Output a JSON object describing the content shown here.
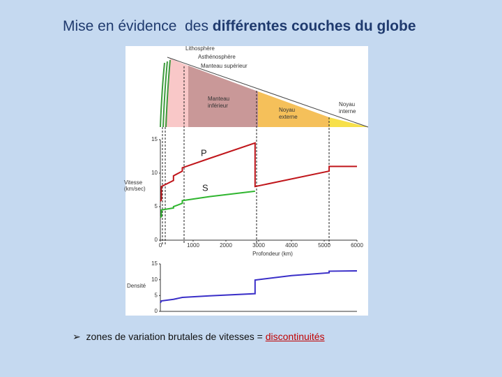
{
  "slide": {
    "title_plain": "Mise en évidence  des ",
    "title_bold": "différentes couches du globe",
    "bullet_text": "zones de variation brutales de vitesses = ",
    "bullet_highlight": "discontinuités"
  },
  "cross_section": {
    "labels": [
      [
        "Lithosphère"
      ],
      [
        "Asthénosphère"
      ],
      [
        "Manteau supérieur"
      ],
      [
        "Manteau",
        "inférieur"
      ],
      [
        "Noyau",
        "externe"
      ],
      [
        "Noyau",
        "interne"
      ]
    ]
  },
  "chart_data": [
    {
      "type": "line",
      "ylabel": [
        "Vitesse",
        "(km/sec)"
      ],
      "xlabel": "Profondeur (km)",
      "xlim": [
        0,
        6000
      ],
      "ylim": [
        0,
        15
      ],
      "xticks": [
        0,
        1000,
        2000,
        3000,
        4000,
        5000,
        6000
      ],
      "yticks": [
        0,
        5,
        10,
        15
      ],
      "series": [
        {
          "name": "P",
          "color": "#c0161b",
          "x": [
            0,
            30,
            30,
            400,
            400,
            670,
            670,
            1500,
            2890,
            2890,
            5150,
            5150,
            6000
          ],
          "values": [
            5.8,
            6.0,
            8.0,
            8.9,
            9.6,
            10.3,
            10.8,
            12.2,
            14.5,
            8.0,
            10.3,
            11.0,
            11.0
          ]
        },
        {
          "name": "S",
          "color": "#2fb52f",
          "x": [
            0,
            30,
            30,
            400,
            400,
            670,
            670,
            1500,
            2890
          ],
          "values": [
            3.4,
            3.5,
            4.5,
            4.8,
            5.0,
            5.5,
            5.9,
            6.5,
            7.3
          ]
        }
      ]
    },
    {
      "type": "line",
      "ylabel": [
        "Densité"
      ],
      "xlim": [
        0,
        6000
      ],
      "ylim": [
        0,
        15
      ],
      "yticks": [
        0,
        5,
        10,
        15
      ],
      "series": [
        {
          "color": "#3a2fc8",
          "x": [
            0,
            30,
            400,
            670,
            1500,
            2890,
            2890,
            4000,
            5150,
            5150,
            6000
          ],
          "values": [
            2.7,
            3.3,
            3.8,
            4.4,
            4.9,
            5.6,
            9.9,
            11.3,
            12.2,
            12.7,
            12.8
          ]
        }
      ]
    }
  ]
}
